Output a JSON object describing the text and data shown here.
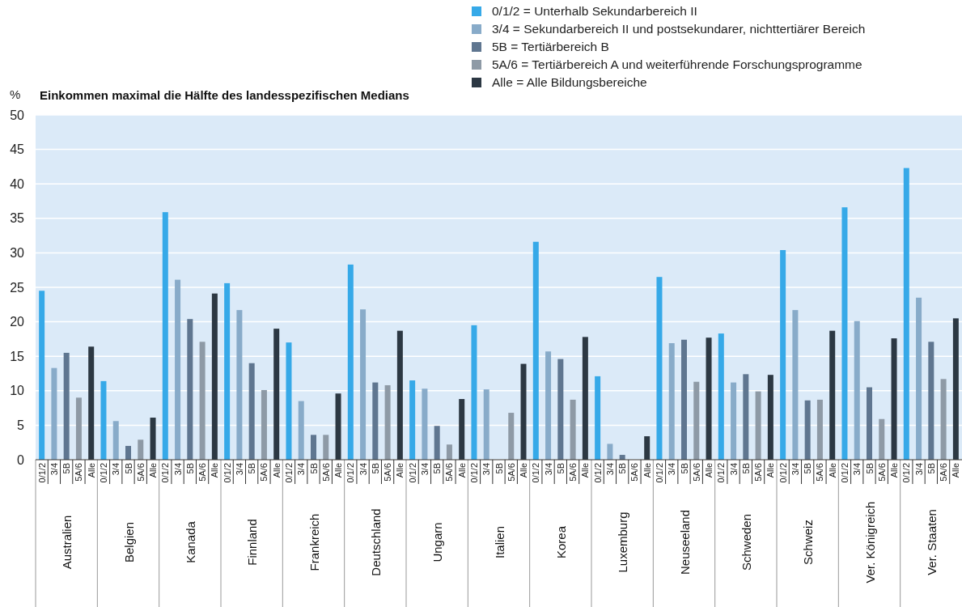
{
  "chart_data": {
    "type": "bar",
    "title": "Einkommen maximal die Hälfte des landesspezifischen Medians",
    "ylabel": "%",
    "categories": [
      "Australien",
      "Belgien",
      "Kanada",
      "Finnland",
      "Frankreich",
      "Deutschland",
      "Ungarn",
      "Italien",
      "Korea",
      "Luxemburg",
      "Neuseeland",
      "Schweden",
      "Schweiz",
      "Ver. Königreich",
      "Ver. Staaten"
    ],
    "series": [
      {
        "name": "0/1/2 = Unterhalb Sekundarbereich II",
        "color": "#36a9e8",
        "values": [
          24.5,
          11.4,
          35.9,
          25.6,
          17.0,
          28.3,
          11.5,
          19.5,
          31.6,
          12.1,
          26.5,
          18.3,
          30.4,
          36.6,
          42.3
        ]
      },
      {
        "name": "3/4 = Sekundarbereich II und postsekundarer, nichttertiärer Bereich",
        "color": "#88abc9",
        "values": [
          13.3,
          5.6,
          26.1,
          21.7,
          8.5,
          21.8,
          10.3,
          10.2,
          15.7,
          2.3,
          16.9,
          11.2,
          21.7,
          20.1,
          23.5
        ]
      },
      {
        "name": "5B = Tertiärbereich B",
        "color": "#5f7690",
        "values": [
          15.5,
          2.0,
          20.4,
          14.0,
          3.6,
          11.2,
          4.9,
          null,
          14.6,
          0.7,
          17.4,
          12.4,
          8.6,
          10.5,
          17.1
        ]
      },
      {
        "name": "5A/6 = Tertiärbereich A und weiterführende Forschungsprogramme",
        "color": "#8e9aa6",
        "values": [
          9.0,
          2.9,
          17.1,
          10.1,
          3.6,
          10.8,
          2.2,
          6.8,
          8.7,
          null,
          11.3,
          9.9,
          8.7,
          5.9,
          11.7
        ]
      },
      {
        "name": "Alle = Alle Bildungsbereiche",
        "color": "#2c3843",
        "values": [
          16.4,
          6.1,
          24.1,
          19.0,
          9.6,
          18.7,
          8.8,
          13.9,
          17.8,
          3.4,
          17.7,
          12.3,
          18.7,
          17.6,
          20.5
        ]
      }
    ],
    "annotations": [
      "0/1/2",
      "3/4",
      "5B",
      "5A/6",
      "Alle"
    ],
    "ylim": [
      0,
      50
    ],
    "yticks": [
      0,
      5,
      10,
      15,
      20,
      25,
      30,
      35,
      40,
      45,
      50
    ],
    "grid": "y",
    "legend": "top right"
  }
}
